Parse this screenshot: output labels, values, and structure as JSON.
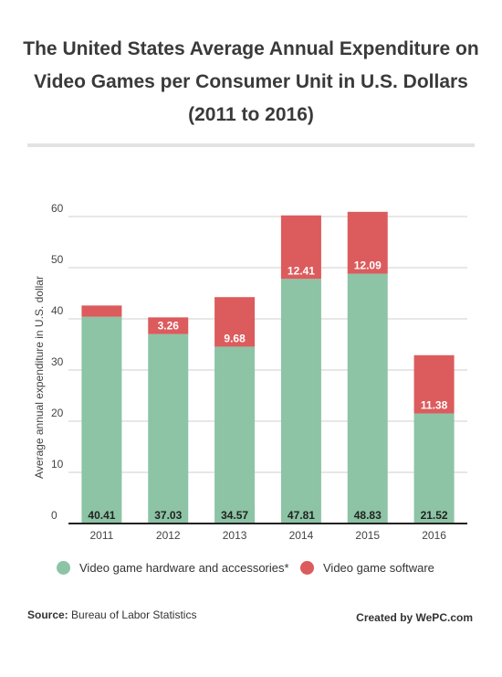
{
  "title_lines": [
    "The United States Average Annual Expenditure on",
    "Video Games per Consumer Unit in U.S. Dollars",
    "(2011 to 2016)"
  ],
  "footer": {
    "source_label": "Source:",
    "source_value": "Bureau of Labor Statistics",
    "credit": "Created by WePC.com"
  },
  "colors": {
    "hardware": "#8cc4a5",
    "software": "#dc5b5d"
  },
  "chart_data": {
    "type": "bar",
    "stacked": true,
    "categories": [
      "2011",
      "2012",
      "2013",
      "2014",
      "2015",
      "2016"
    ],
    "series": [
      {
        "name": "Video game hardware and accessories*",
        "values": [
          40.41,
          37.03,
          34.57,
          47.81,
          48.83,
          21.52
        ],
        "labels": [
          "40.41",
          "37.03",
          "34.57",
          "47.81",
          "48.83",
          "21.52"
        ]
      },
      {
        "name": "Video game software",
        "values": [
          2.2,
          3.26,
          9.68,
          12.41,
          12.09,
          11.38
        ],
        "labels": [
          "",
          "3.26",
          "9.68",
          "12.41",
          "12.09",
          "11.38"
        ]
      }
    ],
    "ylabel": "Average annual expenditure in U.S. dollar",
    "xlabel": "",
    "ylim": [
      0,
      60
    ],
    "yticks": [
      "0",
      "10",
      "20",
      "30",
      "40",
      "50",
      "60"
    ],
    "grid": true,
    "legend": "bottom"
  }
}
